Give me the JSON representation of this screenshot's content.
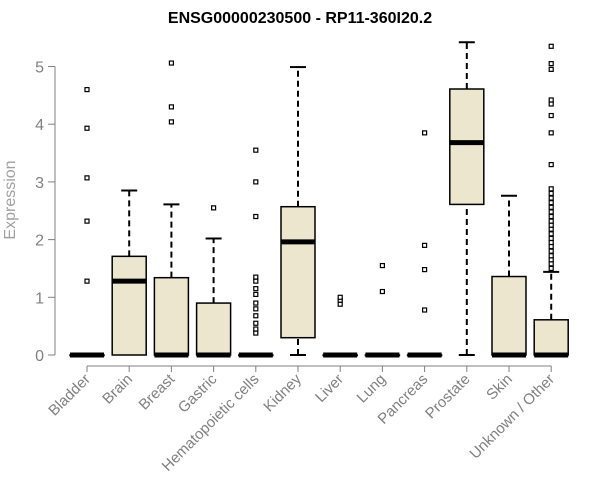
{
  "chart_data": {
    "type": "boxplot",
    "title": "ENSG00000230500 - RP11-360I20.2",
    "xlabel": "",
    "ylabel": "Expression",
    "ylim": [
      0,
      5.4
    ],
    "yticks": [
      "0",
      "1",
      "2",
      "3",
      "4",
      "5"
    ],
    "ytick_values": [
      0,
      1,
      2,
      3,
      4,
      5
    ],
    "box_fill": "#ede6cf",
    "categories": [
      "Bladder",
      "Brain",
      "Breast",
      "Gastric",
      "Hematopoietic cells",
      "Kidney",
      "Liver",
      "Lung",
      "Pancreas",
      "Prostate",
      "Skin",
      "Unknown / Other"
    ],
    "boxes": [
      {
        "q1": 0,
        "median": 0,
        "q3": 0,
        "whisker_low": 0,
        "whisker_high": 0,
        "outliers": [
          1.28,
          2.32,
          3.07,
          3.93,
          4.6
        ]
      },
      {
        "q1": 0,
        "median": 1.28,
        "q3": 1.71,
        "whisker_low": 0,
        "whisker_high": 2.85,
        "outliers": []
      },
      {
        "q1": 0,
        "median": 0,
        "q3": 1.34,
        "whisker_low": 0,
        "whisker_high": 2.61,
        "outliers": [
          4.04,
          4.3,
          5.06
        ]
      },
      {
        "q1": 0,
        "median": 0,
        "q3": 0.9,
        "whisker_low": 0,
        "whisker_high": 2.02,
        "outliers": [
          2.55
        ]
      },
      {
        "q1": 0,
        "median": 0,
        "q3": 0,
        "whisker_low": 0,
        "whisker_high": 0,
        "outliers": [
          0.38,
          0.45,
          0.55,
          0.68,
          0.8,
          0.9,
          1.05,
          1.15,
          1.28,
          1.35,
          2.4,
          3.0,
          3.55
        ]
      },
      {
        "q1": 0.3,
        "median": 1.96,
        "q3": 2.57,
        "whisker_low": 0,
        "whisker_high": 4.99,
        "outliers": []
      },
      {
        "q1": 0,
        "median": 0,
        "q3": 0,
        "whisker_low": 0,
        "whisker_high": 0,
        "outliers": [
          0.88,
          0.95,
          1.0
        ]
      },
      {
        "q1": 0,
        "median": 0,
        "q3": 0,
        "whisker_low": 0,
        "whisker_high": 0,
        "outliers": [
          1.1,
          1.55
        ]
      },
      {
        "q1": 0,
        "median": 0,
        "q3": 0,
        "whisker_low": 0,
        "whisker_high": 0,
        "outliers": [
          0.78,
          1.48,
          1.9,
          3.85
        ]
      },
      {
        "q1": 2.61,
        "median": 3.68,
        "q3": 4.61,
        "whisker_low": 0,
        "whisker_high": 5.42,
        "outliers": []
      },
      {
        "q1": 0,
        "median": 0,
        "q3": 1.36,
        "whisker_low": 0,
        "whisker_high": 2.76,
        "outliers": []
      },
      {
        "q1": 0,
        "median": 0,
        "q3": 0.61,
        "whisker_low": 0,
        "whisker_high": 1.44,
        "outliers": [
          1.5,
          1.58,
          1.65,
          1.72,
          1.8,
          1.88,
          1.95,
          2.02,
          2.1,
          2.18,
          2.25,
          2.32,
          2.4,
          2.48,
          2.56,
          2.64,
          2.72,
          2.8,
          2.88,
          3.3,
          3.85,
          4.15,
          4.35,
          4.42,
          4.95,
          5.05,
          5.35
        ]
      }
    ]
  }
}
